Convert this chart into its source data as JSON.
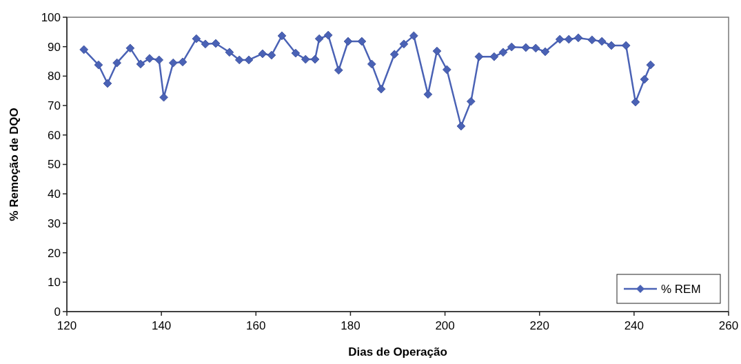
{
  "chart_data": {
    "type": "line",
    "xlabel": "Dias de Operação",
    "ylabel": "% Remoção de DQO",
    "xlim": [
      120,
      260
    ],
    "xticks": [
      120,
      140,
      160,
      180,
      200,
      220,
      240,
      260
    ],
    "ylim": [
      0,
      100
    ],
    "yticks": [
      0,
      10,
      20,
      30,
      40,
      50,
      60,
      70,
      80,
      90,
      100
    ],
    "grid": false,
    "legend": "bottom right",
    "marker": "diamond",
    "line_style": "solid",
    "series": [
      {
        "name": "% REM",
        "color": "#4a62b5",
        "x": [
          123.6,
          126.7,
          128.6,
          130.6,
          133.4,
          135.6,
          137.5,
          139.5,
          140.5,
          142.5,
          144.5,
          147.4,
          149.3,
          151.5,
          154.4,
          156.5,
          158.5,
          161.4,
          163.3,
          165.5,
          168.4,
          170.5,
          172.5,
          173.4,
          175.3,
          177.5,
          179.5,
          182.4,
          184.5,
          186.5,
          189.3,
          191.3,
          193.4,
          196.4,
          198.3,
          200.4,
          203.4,
          205.5,
          207.2,
          210.4,
          212.3,
          214.1,
          217.1,
          219.2,
          221.2,
          224.3,
          226.2,
          228.2,
          231.1,
          233.2,
          235.2,
          238.3,
          240.3,
          242.2,
          243.5
        ],
        "values": [
          89,
          83.8,
          77.5,
          84.5,
          89.5,
          84.1,
          86,
          85.5,
          72.8,
          84.5,
          84.8,
          92.7,
          90.9,
          91.1,
          88.1,
          85.5,
          85.5,
          87.6,
          87.1,
          93.7,
          87.8,
          85.7,
          85.7,
          92.7,
          93.9,
          82,
          91.8,
          91.8,
          84.1,
          75.6,
          87.4,
          90.9,
          93.7,
          73.8,
          88.5,
          82.2,
          63,
          71.4,
          86.6,
          86.6,
          88.1,
          89.9,
          89.7,
          89.5,
          88.3,
          92.5,
          92.5,
          93,
          92.3,
          91.8,
          90.4,
          90.4,
          71.2,
          78.9,
          83.8
        ]
      }
    ]
  }
}
